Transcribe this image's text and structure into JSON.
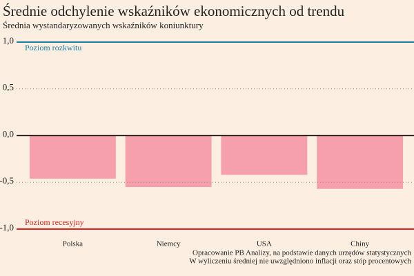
{
  "chart_data": {
    "type": "bar",
    "title": "Średnie odchylenie wskaźników ekonomicznych od trendu",
    "subtitle": "Średnia wystandaryzowanych wskaźników koniunktury",
    "categories": [
      "Polska",
      "Niemcy",
      "USA",
      "Chiny"
    ],
    "values": [
      -0.46,
      -0.55,
      -0.42,
      -0.57
    ],
    "color": "#f5a0ac",
    "ylim": [
      -1,
      1
    ],
    "yticks": [
      {
        "value": -1,
        "label": "-1,0"
      },
      {
        "value": -0.5,
        "label": "-0,5"
      },
      {
        "value": 0,
        "label": "0,0"
      },
      {
        "value": 0.5,
        "label": "0,5"
      },
      {
        "value": 1,
        "label": "1,0"
      }
    ],
    "grid": true,
    "reference_lines": [
      {
        "value": 1,
        "label": "Poziom rozkwitu",
        "color": "#1a7fa3"
      },
      {
        "value": -1,
        "label": "Poziom recesyjny",
        "color": "#d42424"
      }
    ],
    "notes": [
      "Opracowanie PB Analizy, na podstawie danych urzędów statystycznych",
      "W wyliczeniu średniej nie uwzględniono inflacji oraz stóp procentowych"
    ]
  }
}
